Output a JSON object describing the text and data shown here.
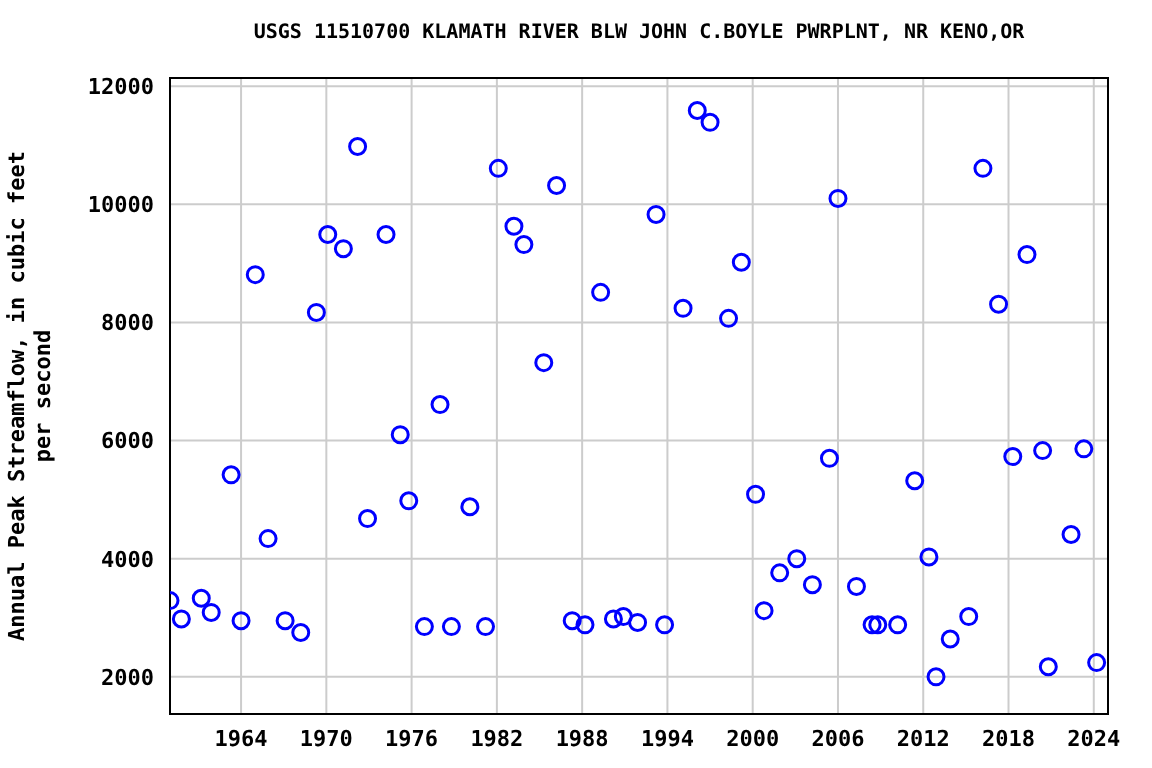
{
  "chart_data": {
    "type": "scatter",
    "title": "USGS 11510700 KLAMATH RIVER BLW JOHN C.BOYLE PWRPLNT, NR KENO,OR",
    "ylabel": "Annual Peak Streamflow, in cubic feet per second",
    "x": [
      1959.0,
      1959.8,
      1961.2,
      1961.9,
      1963.3,
      1964.0,
      1965.0,
      1965.9,
      1967.1,
      1968.2,
      1969.3,
      1970.1,
      1971.2,
      1972.2,
      1972.9,
      1974.2,
      1975.2,
      1975.8,
      1976.9,
      1978.0,
      1978.8,
      1980.1,
      1981.2,
      1982.1,
      1983.2,
      1983.9,
      1985.3,
      1986.2,
      1987.3,
      1988.2,
      1989.3,
      1990.2,
      1990.9,
      1991.9,
      1993.2,
      1993.8,
      1995.1,
      1996.1,
      1997.0,
      1998.3,
      1999.2,
      2000.2,
      2000.8,
      2001.9,
      2003.1,
      2004.2,
      2005.4,
      2006.0,
      2007.3,
      2008.4,
      2008.8,
      2010.2,
      2011.4,
      2012.4,
      2012.9,
      2013.9,
      2015.2,
      2016.2,
      2017.3,
      2018.3,
      2019.3,
      2020.4,
      2020.8,
      2022.4,
      2023.3,
      2024.2
    ],
    "values": [
      3290,
      2980,
      3330,
      3090,
      5420,
      2950,
      8810,
      4340,
      2950,
      2750,
      8170,
      9490,
      9250,
      10980,
      4680,
      9490,
      6100,
      4980,
      2850,
      6610,
      2850,
      4880,
      2850,
      10610,
      9630,
      9320,
      7320,
      10320,
      2950,
      2880,
      8510,
      2980,
      3020,
      2920,
      9830,
      2880,
      8240,
      11590,
      11390,
      8070,
      9020,
      5090,
      3120,
      3760,
      4000,
      3560,
      5700,
      10100,
      3530,
      2880,
      2880,
      2880,
      5320,
      4030,
      2000,
      2640,
      3020,
      10610,
      8310,
      5730,
      9150,
      5830,
      2170,
      4410,
      5860,
      2240
    ],
    "color": "#0000ff",
    "marker": "circle",
    "grid": true,
    "xlim": [
      1959,
      2025
    ],
    "xticks": [
      1964,
      1970,
      1976,
      1982,
      1988,
      1994,
      2000,
      2006,
      2012,
      2018,
      2024
    ],
    "ylim": [
      1370,
      12140
    ],
    "yticks": [
      2000,
      4000,
      6000,
      8000,
      10000,
      12000
    ]
  }
}
